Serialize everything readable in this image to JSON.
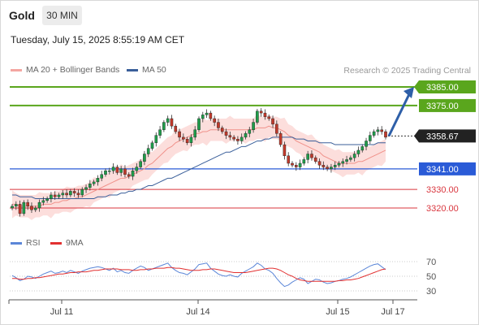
{
  "header": {
    "instrument": "Gold",
    "timeframe": "30 MIN",
    "timestamp": "Tuesday, July 15, 2025 8:55:19 AM CET"
  },
  "legend": {
    "items": [
      {
        "label": "MA 20 + Bollinger Bands",
        "color": "#f4a6a1"
      },
      {
        "label": "MA 50",
        "color": "#3a5f9a"
      }
    ],
    "credit": "Research © 2025 Trading Central"
  },
  "rsi_legend": {
    "items": [
      {
        "label": "RSI",
        "color": "#5b86d8"
      },
      {
        "label": "9MA",
        "color": "#e23030"
      }
    ]
  },
  "chart_data": [
    {
      "type": "candlestick",
      "ylim": [
        3310,
        3392
      ],
      "x_ticks": [
        "Jul 11",
        "Jul 14",
        "Jul 15",
        "Jul 17"
      ],
      "last_price": {
        "value": 3358.67,
        "label": "3358.67"
      },
      "levels": [
        {
          "value": 3385.0,
          "label": "3385.00",
          "color": "#5aa61d",
          "style": "filled"
        },
        {
          "value": 3375.0,
          "label": "3375.00",
          "color": "#5aa61d",
          "style": "filled"
        },
        {
          "value": 3341.0,
          "label": "3341.00",
          "color": "#2a5bd7",
          "style": "filled"
        },
        {
          "value": 3330.0,
          "label": "3330.00",
          "color": "#d9363e",
          "style": "text"
        },
        {
          "value": 3320.0,
          "label": "3320.00",
          "color": "#d9363e",
          "style": "text"
        }
      ],
      "forecast_arrow": {
        "from": 3358.67,
        "to": 3385.0
      },
      "candles": [
        3321,
        3322,
        3317,
        3323,
        3321,
        3319,
        3320,
        3323,
        3324,
        3325,
        3327,
        3326,
        3327,
        3328,
        3327,
        3329,
        3328,
        3327,
        3330,
        3331,
        3333,
        3334,
        3336,
        3338,
        3340,
        3340,
        3342,
        3339,
        3341,
        3338,
        3337,
        3340,
        3342,
        3345,
        3349,
        3352,
        3355,
        3359,
        3362,
        3366,
        3368,
        3364,
        3361,
        3358,
        3357,
        3355,
        3358,
        3362,
        3368,
        3370,
        3371,
        3368,
        3366,
        3363,
        3361,
        3359,
        3358,
        3357,
        3356,
        3358,
        3360,
        3362,
        3366,
        3372,
        3371,
        3369,
        3368,
        3365,
        3360,
        3354,
        3348,
        3344,
        3343,
        3342,
        3344,
        3346,
        3349,
        3347,
        3345,
        3343,
        3342,
        3341,
        3342,
        3343,
        3344,
        3345,
        3346,
        3347,
        3349,
        3351,
        3353,
        3356,
        3359,
        3361,
        3362,
        3361,
        3358
      ],
      "ma20": [
        3322,
        3322,
        3321,
        3321,
        3321,
        3321,
        3321,
        3321,
        3322,
        3322,
        3322,
        3323,
        3323,
        3324,
        3324,
        3325,
        3325,
        3326,
        3326,
        3327,
        3328,
        3329,
        3330,
        3331,
        3332,
        3333,
        3334,
        3335,
        3336,
        3336,
        3337,
        3338,
        3339,
        3340,
        3341,
        3343,
        3344,
        3346,
        3348,
        3350,
        3352,
        3353,
        3355,
        3356,
        3357,
        3358,
        3359,
        3360,
        3360,
        3361,
        3361,
        3362,
        3362,
        3362,
        3362,
        3362,
        3362,
        3362,
        3362,
        3362,
        3362,
        3362,
        3362,
        3363,
        3363,
        3363,
        3364,
        3363,
        3363,
        3362,
        3361,
        3359,
        3358,
        3356,
        3355,
        3354,
        3353,
        3352,
        3351,
        3350,
        3348,
        3347,
        3346,
        3345,
        3344,
        3344,
        3344,
        3344,
        3344,
        3345,
        3345,
        3346,
        3347,
        3348,
        3349,
        3350,
        3351
      ],
      "ma50": [
        3327,
        3327,
        3326,
        3326,
        3326,
        3326,
        3325,
        3325,
        3325,
        3325,
        3325,
        3325,
        3325,
        3325,
        3325,
        3325,
        3325,
        3325,
        3325,
        3325,
        3325,
        3325,
        3326,
        3326,
        3326,
        3327,
        3327,
        3327,
        3328,
        3328,
        3329,
        3329,
        3330,
        3330,
        3331,
        3332,
        3332,
        3333,
        3334,
        3335,
        3336,
        3336,
        3337,
        3338,
        3339,
        3340,
        3341,
        3342,
        3343,
        3344,
        3345,
        3346,
        3347,
        3348,
        3349,
        3350,
        3350,
        3351,
        3352,
        3353,
        3353,
        3354,
        3355,
        3356,
        3356,
        3357,
        3357,
        3358,
        3358,
        3358,
        3358,
        3358,
        3358,
        3357,
        3357,
        3357,
        3356,
        3356,
        3356,
        3355,
        3355,
        3355,
        3355,
        3354,
        3354,
        3354,
        3354,
        3354,
        3354,
        3354,
        3354,
        3354,
        3354,
        3354,
        3355,
        3355,
        3355
      ],
      "band_half_width": 6
    },
    {
      "type": "line",
      "name": "RSI panel",
      "ylim": [
        20,
        80
      ],
      "y_ticks": [
        70,
        50,
        30
      ],
      "series": [
        {
          "name": "RSI",
          "color": "#5b86d8",
          "values": [
            51,
            48,
            44,
            46,
            50,
            49,
            47,
            50,
            53,
            55,
            57,
            54,
            55,
            57,
            55,
            58,
            56,
            54,
            57,
            59,
            61,
            62,
            63,
            62,
            60,
            58,
            61,
            56,
            58,
            55,
            54,
            58,
            61,
            64,
            62,
            58,
            60,
            62,
            64,
            66,
            68,
            62,
            58,
            55,
            54,
            52,
            56,
            60,
            66,
            67,
            68,
            61,
            57,
            53,
            51,
            50,
            52,
            50,
            49,
            54,
            57,
            60,
            63,
            68,
            65,
            60,
            58,
            54,
            47,
            41,
            36,
            38,
            42,
            45,
            48,
            46,
            40,
            43,
            46,
            45,
            42,
            40,
            41,
            43,
            44,
            46,
            47,
            49,
            52,
            55,
            58,
            61,
            64,
            66,
            67,
            63,
            59
          ]
        },
        {
          "name": "9MA",
          "color": "#e23030",
          "values": [
            47,
            47,
            46,
            46,
            47,
            47,
            48,
            48,
            49,
            50,
            51,
            52,
            53,
            53,
            54,
            55,
            55,
            56,
            56,
            56,
            57,
            58,
            58,
            59,
            60,
            60,
            60,
            60,
            59,
            59,
            59,
            58,
            58,
            59,
            59,
            60,
            60,
            61,
            61,
            61,
            62,
            62,
            61,
            61,
            60,
            59,
            58,
            58,
            58,
            59,
            59,
            60,
            60,
            59,
            58,
            57,
            56,
            55,
            55,
            55,
            55,
            56,
            57,
            58,
            59,
            60,
            61,
            61,
            60,
            58,
            55,
            52,
            50,
            47,
            45,
            44,
            43,
            43,
            43,
            43,
            43,
            43,
            43,
            43,
            44,
            44,
            45,
            45,
            46,
            47,
            49,
            51,
            53,
            55,
            57,
            59,
            60
          ]
        }
      ]
    }
  ]
}
